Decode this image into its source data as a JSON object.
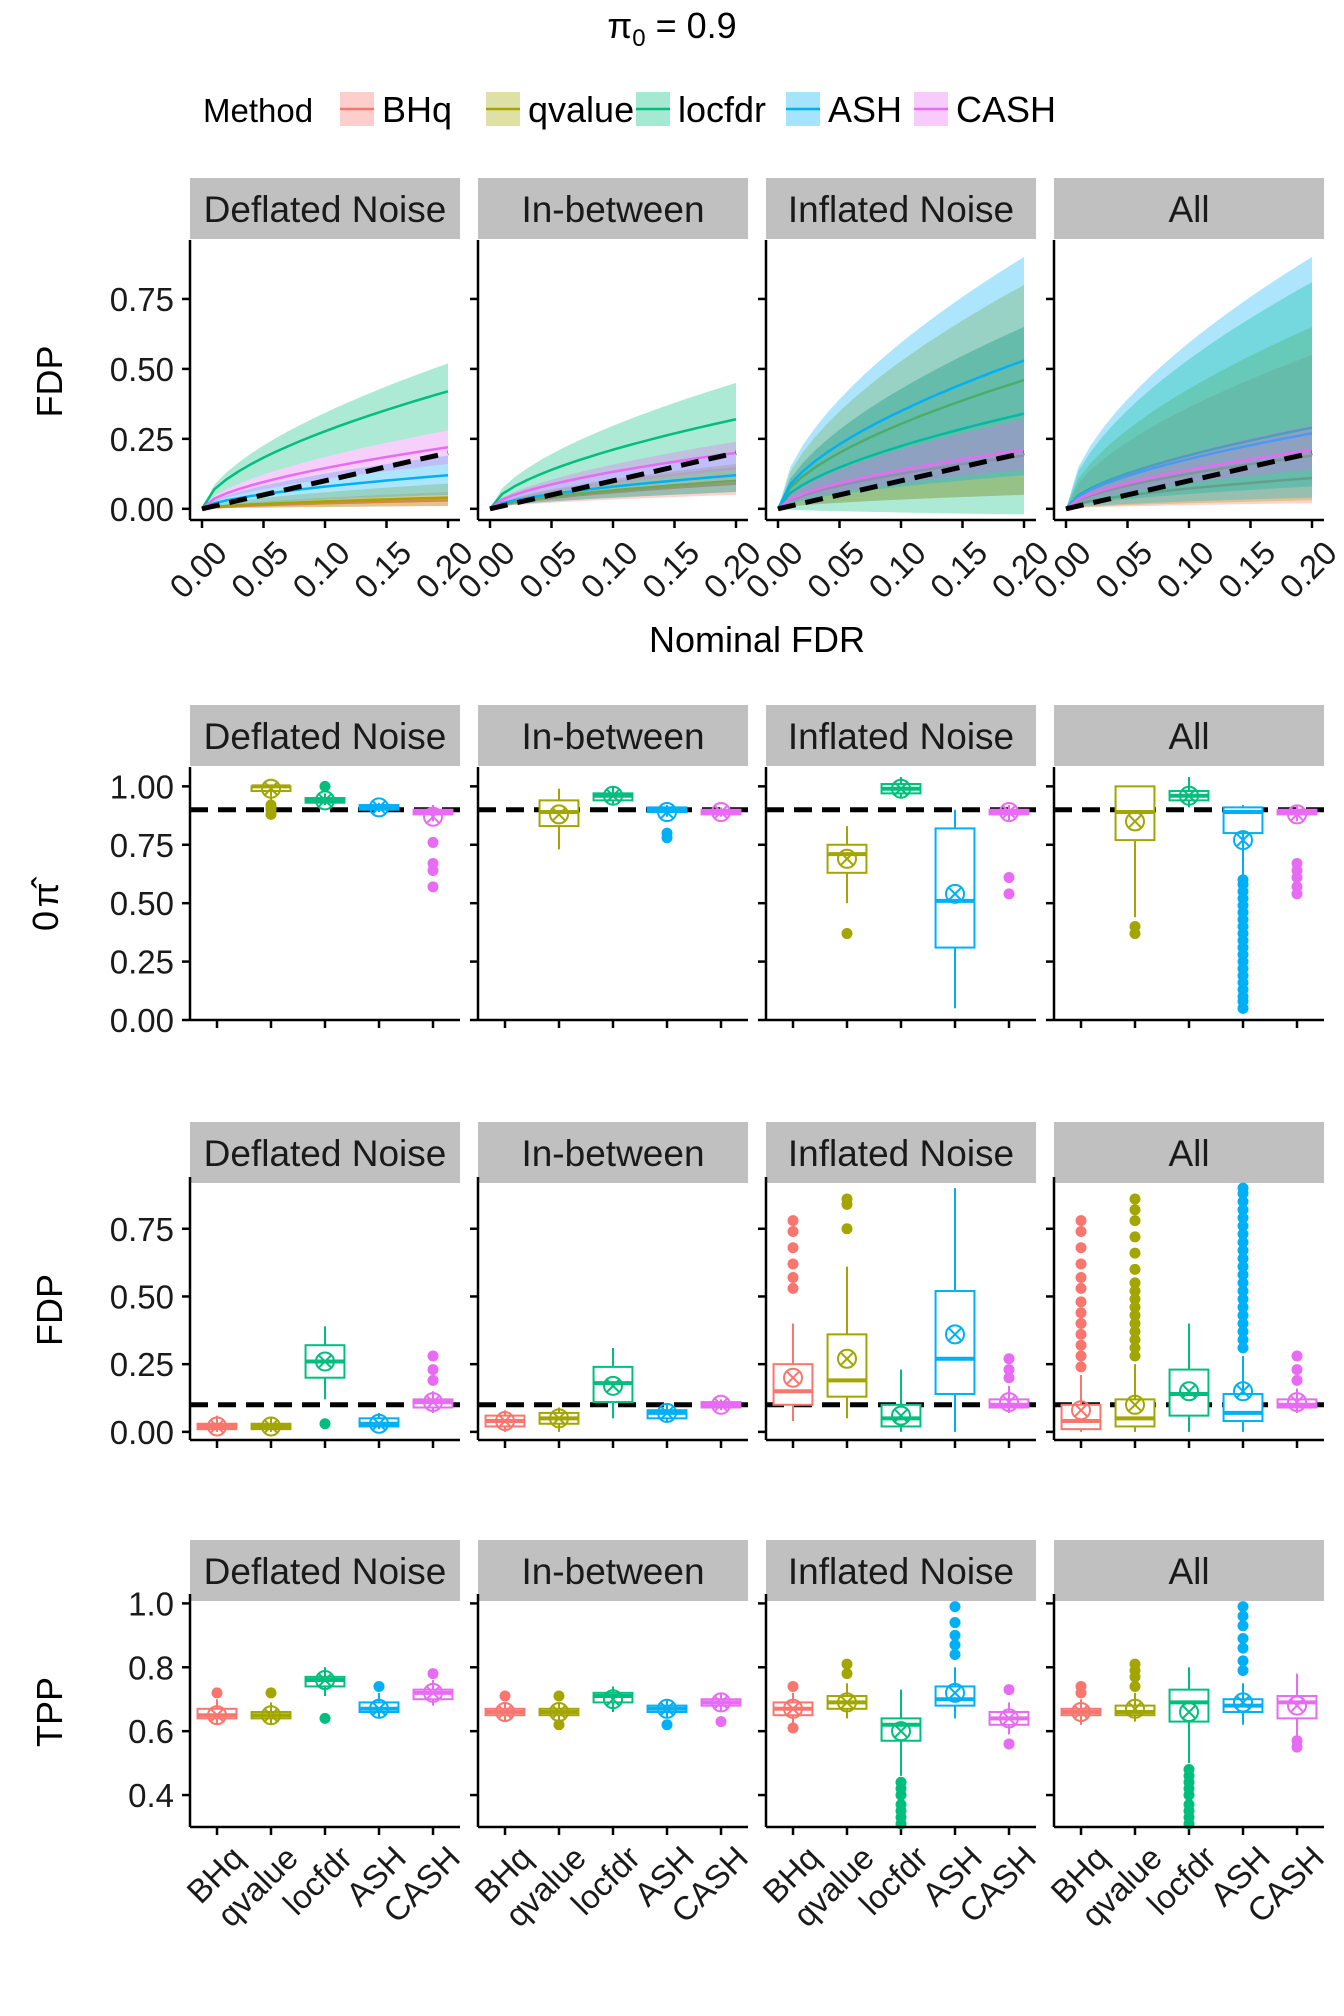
{
  "title": "π0 = 0.9",
  "title_main": "π",
  "title_sub": "0",
  "title_rest": " = 0.9",
  "legend": {
    "title": "Method",
    "items": [
      {
        "label": "BHq",
        "color": "#f8766d"
      },
      {
        "label": "qvalue",
        "color": "#a3a500"
      },
      {
        "label": "locfdr",
        "color": "#00bf7d"
      },
      {
        "label": "ASH",
        "color": "#00b0f6"
      },
      {
        "label": "CASH",
        "color": "#e76bf3"
      }
    ]
  },
  "chart_data": [
    {
      "type": "line",
      "facets": [
        "Deflated Noise",
        "In-between",
        "Inflated Noise",
        "All"
      ],
      "ylabel": "FDP",
      "xlabel": "Nominal FDR",
      "xlim": [
        0,
        0.2
      ],
      "ylim": [
        -0.04,
        0.95
      ],
      "x_ticks": [
        "0.00",
        "0.05",
        "0.10",
        "0.15",
        "0.20"
      ],
      "y_ticks": [
        "0.00",
        "0.25",
        "0.50",
        "0.75"
      ],
      "reference_line": "y = x (dashed)",
      "series": [
        {
          "name": "BHq",
          "end_mean": [
            0.03,
            0.09,
            0.19,
            0.11
          ],
          "end_band": [
            [
              0.01,
              0.06
            ],
            [
              0.05,
              0.15
            ],
            [
              0.05,
              0.65
            ],
            [
              0.02,
              0.55
            ]
          ]
        },
        {
          "name": "qvalue",
          "end_mean": [
            0.04,
            0.1,
            0.46,
            0.19
          ],
          "end_band": [
            [
              0.01,
              0.09
            ],
            [
              0.06,
              0.16
            ],
            [
              0.05,
              0.8
            ],
            [
              0.03,
              0.65
            ]
          ]
        },
        {
          "name": "locfdr",
          "end_mean": [
            0.42,
            0.32,
            0.34,
            0.29
          ],
          "end_band": [
            [
              0.28,
              0.52
            ],
            [
              0.2,
              0.45
            ],
            [
              -0.02,
              0.65
            ],
            [
              0.08,
              0.81
            ]
          ]
        },
        {
          "name": "ASH",
          "end_mean": [
            0.12,
            0.12,
            0.53,
            0.27
          ],
          "end_band": [
            [
              0.05,
              0.19
            ],
            [
              0.06,
              0.2
            ],
            [
              0.12,
              0.9
            ],
            [
              0.04,
              0.9
            ]
          ]
        },
        {
          "name": "CASH",
          "end_mean": [
            0.22,
            0.2,
            0.21,
            0.21
          ],
          "end_band": [
            [
              0.16,
              0.28
            ],
            [
              0.14,
              0.24
            ],
            [
              0.14,
              0.32
            ],
            [
              0.14,
              0.3
            ]
          ]
        }
      ]
    },
    {
      "type": "box",
      "facets": [
        "Deflated Noise",
        "In-between",
        "Inflated Noise",
        "All"
      ],
      "ylabel": "π0 hat",
      "ylim": [
        0,
        1.07
      ],
      "y_ticks": [
        "0.00",
        "0.25",
        "0.50",
        "0.75",
        "1.00"
      ],
      "reference_line": 0.9,
      "methods": [
        "qvalue",
        "locfdr",
        "ASH",
        "CASH"
      ],
      "boxes": {
        "Deflated Noise": [
          {
            "q1": 0.98,
            "med": 1.0,
            "q3": 1.0,
            "lo": 0.93,
            "hi": 1.0,
            "mean": 0.99,
            "out": [
              0.88,
              0.9,
              0.91,
              0.92
            ]
          },
          {
            "q1": 0.93,
            "med": 0.94,
            "q3": 0.95,
            "lo": 0.92,
            "hi": 0.97,
            "mean": 0.94,
            "out": [
              1.0
            ]
          },
          {
            "q1": 0.9,
            "med": 0.91,
            "q3": 0.92,
            "lo": 0.89,
            "hi": 0.93,
            "mean": 0.91,
            "out": []
          },
          {
            "q1": 0.88,
            "med": 0.89,
            "q3": 0.9,
            "lo": 0.85,
            "hi": 0.92,
            "mean": 0.87,
            "out": [
              0.57,
              0.64,
              0.67,
              0.76
            ]
          }
        ],
        "In-between": [
          {
            "q1": 0.83,
            "med": 0.89,
            "q3": 0.94,
            "lo": 0.73,
            "hi": 0.99,
            "mean": 0.88,
            "out": []
          },
          {
            "q1": 0.94,
            "med": 0.96,
            "q3": 0.97,
            "lo": 0.92,
            "hi": 1.0,
            "mean": 0.96,
            "out": []
          },
          {
            "q1": 0.89,
            "med": 0.9,
            "q3": 0.91,
            "lo": 0.87,
            "hi": 0.92,
            "mean": 0.89,
            "out": [
              0.78,
              0.8
            ]
          },
          {
            "q1": 0.88,
            "med": 0.89,
            "q3": 0.9,
            "lo": 0.87,
            "hi": 0.91,
            "mean": 0.89,
            "out": []
          }
        ],
        "Inflated Noise": [
          {
            "q1": 0.63,
            "med": 0.71,
            "q3": 0.75,
            "lo": 0.5,
            "hi": 0.83,
            "mean": 0.69,
            "out": [
              0.37
            ]
          },
          {
            "q1": 0.97,
            "med": 0.99,
            "q3": 1.01,
            "lo": 0.95,
            "hi": 1.04,
            "mean": 0.99,
            "out": []
          },
          {
            "q1": 0.31,
            "med": 0.51,
            "q3": 0.82,
            "lo": 0.05,
            "hi": 0.9,
            "mean": 0.54,
            "out": []
          },
          {
            "q1": 0.88,
            "med": 0.89,
            "q3": 0.9,
            "lo": 0.85,
            "hi": 0.92,
            "mean": 0.89,
            "out": [
              0.54,
              0.61
            ]
          }
        ],
        "All": [
          {
            "q1": 0.77,
            "med": 0.89,
            "q3": 1.0,
            "lo": 0.44,
            "hi": 1.0,
            "mean": 0.85,
            "out": [
              0.37,
              0.4
            ]
          },
          {
            "q1": 0.94,
            "med": 0.96,
            "q3": 0.98,
            "lo": 0.91,
            "hi": 1.04,
            "mean": 0.96,
            "out": []
          },
          {
            "q1": 0.8,
            "med": 0.89,
            "q3": 0.91,
            "lo": 0.62,
            "hi": 0.92,
            "mean": 0.77,
            "out": [
              0.05,
              0.08,
              0.1,
              0.13,
              0.16,
              0.19,
              0.22,
              0.25,
              0.28,
              0.31,
              0.34,
              0.37,
              0.4,
              0.43,
              0.46,
              0.49,
              0.52,
              0.55,
              0.58,
              0.6
            ]
          },
          {
            "q1": 0.88,
            "med": 0.89,
            "q3": 0.9,
            "lo": 0.85,
            "hi": 0.92,
            "mean": 0.88,
            "out": [
              0.54,
              0.57,
              0.61,
              0.64,
              0.67
            ]
          }
        ]
      }
    },
    {
      "type": "box",
      "facets": [
        "Deflated Noise",
        "In-between",
        "Inflated Noise",
        "All"
      ],
      "ylabel": "FDP",
      "ylim": [
        -0.03,
        0.93
      ],
      "y_ticks": [
        "0.00",
        "0.25",
        "0.50",
        "0.75"
      ],
      "reference_line": 0.1,
      "methods": [
        "BHq",
        "qvalue",
        "locfdr",
        "ASH",
        "CASH"
      ],
      "boxes": {
        "Deflated Noise": [
          {
            "q1": 0.01,
            "med": 0.02,
            "q3": 0.03,
            "lo": 0.0,
            "hi": 0.06,
            "mean": 0.02,
            "out": []
          },
          {
            "q1": 0.01,
            "med": 0.02,
            "q3": 0.03,
            "lo": 0.0,
            "hi": 0.05,
            "mean": 0.02,
            "out": []
          },
          {
            "q1": 0.2,
            "med": 0.26,
            "q3": 0.32,
            "lo": 0.12,
            "hi": 0.39,
            "mean": 0.26,
            "out": [
              0.03
            ]
          },
          {
            "q1": 0.02,
            "med": 0.03,
            "q3": 0.05,
            "lo": 0.01,
            "hi": 0.07,
            "mean": 0.03,
            "out": []
          },
          {
            "q1": 0.09,
            "med": 0.11,
            "q3": 0.12,
            "lo": 0.07,
            "hi": 0.15,
            "mean": 0.11,
            "out": [
              0.19,
              0.23,
              0.28
            ]
          }
        ],
        "In-between": [
          {
            "q1": 0.02,
            "med": 0.04,
            "q3": 0.06,
            "lo": 0.0,
            "hi": 0.08,
            "mean": 0.04,
            "out": []
          },
          {
            "q1": 0.03,
            "med": 0.05,
            "q3": 0.07,
            "lo": 0.0,
            "hi": 0.09,
            "mean": 0.05,
            "out": []
          },
          {
            "q1": 0.11,
            "med": 0.18,
            "q3": 0.24,
            "lo": 0.05,
            "hi": 0.31,
            "mean": 0.17,
            "out": []
          },
          {
            "q1": 0.05,
            "med": 0.07,
            "q3": 0.08,
            "lo": 0.04,
            "hi": 0.1,
            "mean": 0.07,
            "out": []
          },
          {
            "q1": 0.09,
            "med": 0.1,
            "q3": 0.11,
            "lo": 0.08,
            "hi": 0.12,
            "mean": 0.1,
            "out": []
          }
        ],
        "Inflated Noise": [
          {
            "q1": 0.1,
            "med": 0.15,
            "q3": 0.25,
            "lo": 0.04,
            "hi": 0.4,
            "mean": 0.2,
            "out": [
              0.53,
              0.57,
              0.62,
              0.68,
              0.74,
              0.78
            ]
          },
          {
            "q1": 0.13,
            "med": 0.19,
            "q3": 0.36,
            "lo": 0.05,
            "hi": 0.61,
            "mean": 0.27,
            "out": [
              0.75,
              0.84,
              0.86
            ]
          },
          {
            "q1": 0.02,
            "med": 0.05,
            "q3": 0.1,
            "lo": 0.0,
            "hi": 0.23,
            "mean": 0.06,
            "out": []
          },
          {
            "q1": 0.14,
            "med": 0.27,
            "q3": 0.52,
            "lo": 0.0,
            "hi": 0.9,
            "mean": 0.36,
            "out": []
          },
          {
            "q1": 0.09,
            "med": 0.1,
            "q3": 0.12,
            "lo": 0.07,
            "hi": 0.17,
            "mean": 0.11,
            "out": [
              0.2,
              0.23,
              0.27
            ]
          }
        ],
        "All": [
          {
            "q1": 0.01,
            "med": 0.04,
            "q3": 0.1,
            "lo": 0.0,
            "hi": 0.21,
            "mean": 0.08,
            "out": [
              0.24,
              0.28,
              0.32,
              0.36,
              0.4,
              0.44,
              0.48,
              0.53,
              0.57,
              0.62,
              0.68,
              0.74,
              0.78
            ]
          },
          {
            "q1": 0.02,
            "med": 0.05,
            "q3": 0.12,
            "lo": 0.0,
            "hi": 0.25,
            "mean": 0.1,
            "out": [
              0.28,
              0.31,
              0.34,
              0.37,
              0.4,
              0.43,
              0.46,
              0.49,
              0.52,
              0.55,
              0.6,
              0.66,
              0.72,
              0.78,
              0.82,
              0.86
            ]
          },
          {
            "q1": 0.06,
            "med": 0.14,
            "q3": 0.23,
            "lo": 0.0,
            "hi": 0.4,
            "mean": 0.15,
            "out": []
          },
          {
            "q1": 0.04,
            "med": 0.07,
            "q3": 0.14,
            "lo": 0.0,
            "hi": 0.28,
            "mean": 0.15,
            "out": [
              0.31,
              0.34,
              0.37,
              0.4,
              0.43,
              0.46,
              0.49,
              0.52,
              0.55,
              0.58,
              0.61,
              0.64,
              0.67,
              0.7,
              0.73,
              0.76,
              0.79,
              0.82,
              0.85,
              0.88,
              0.9
            ]
          },
          {
            "q1": 0.09,
            "med": 0.1,
            "q3": 0.12,
            "lo": 0.07,
            "hi": 0.16,
            "mean": 0.11,
            "out": [
              0.19,
              0.23,
              0.28
            ]
          }
        ]
      }
    },
    {
      "type": "box",
      "facets": [
        "Deflated Noise",
        "In-between",
        "Inflated Noise",
        "All"
      ],
      "ylabel": "TPP",
      "ylim": [
        0.3,
        1.02
      ],
      "y_ticks": [
        "0.4",
        "0.6",
        "0.8",
        "1.0"
      ],
      "methods": [
        "BHq",
        "qvalue",
        "locfdr",
        "ASH",
        "CASH"
      ],
      "x_tick_labels": [
        "BHq",
        "qvalue",
        "locfdr",
        "ASH",
        "CASH"
      ],
      "boxes": {
        "Deflated Noise": [
          {
            "q1": 0.64,
            "med": 0.65,
            "q3": 0.67,
            "lo": 0.62,
            "hi": 0.7,
            "mean": 0.65,
            "out": [
              0.72
            ]
          },
          {
            "q1": 0.64,
            "med": 0.65,
            "q3": 0.66,
            "lo": 0.62,
            "hi": 0.69,
            "mean": 0.65,
            "out": [
              0.72
            ]
          },
          {
            "q1": 0.74,
            "med": 0.76,
            "q3": 0.77,
            "lo": 0.71,
            "hi": 0.8,
            "mean": 0.76,
            "out": [
              0.64
            ]
          },
          {
            "q1": 0.66,
            "med": 0.67,
            "q3": 0.69,
            "lo": 0.64,
            "hi": 0.72,
            "mean": 0.67,
            "out": [
              0.74
            ]
          },
          {
            "q1": 0.7,
            "med": 0.72,
            "q3": 0.73,
            "lo": 0.68,
            "hi": 0.76,
            "mean": 0.72,
            "out": [
              0.78
            ]
          }
        ],
        "In-between": [
          {
            "q1": 0.65,
            "med": 0.66,
            "q3": 0.67,
            "lo": 0.63,
            "hi": 0.69,
            "mean": 0.66,
            "out": [
              0.71
            ]
          },
          {
            "q1": 0.65,
            "med": 0.66,
            "q3": 0.67,
            "lo": 0.63,
            "hi": 0.69,
            "mean": 0.66,
            "out": [
              0.62,
              0.71
            ]
          },
          {
            "q1": 0.69,
            "med": 0.71,
            "q3": 0.72,
            "lo": 0.66,
            "hi": 0.74,
            "mean": 0.7,
            "out": []
          },
          {
            "q1": 0.66,
            "med": 0.67,
            "q3": 0.68,
            "lo": 0.64,
            "hi": 0.7,
            "mean": 0.67,
            "out": [
              0.62
            ]
          },
          {
            "q1": 0.68,
            "med": 0.69,
            "q3": 0.7,
            "lo": 0.66,
            "hi": 0.72,
            "mean": 0.69,
            "out": [
              0.63
            ]
          }
        ],
        "Inflated Noise": [
          {
            "q1": 0.65,
            "med": 0.67,
            "q3": 0.69,
            "lo": 0.62,
            "hi": 0.72,
            "mean": 0.67,
            "out": [
              0.61,
              0.74
            ]
          },
          {
            "q1": 0.67,
            "med": 0.69,
            "q3": 0.71,
            "lo": 0.64,
            "hi": 0.75,
            "mean": 0.69,
            "out": [
              0.78,
              0.81
            ]
          },
          {
            "q1": 0.57,
            "med": 0.62,
            "q3": 0.64,
            "lo": 0.46,
            "hi": 0.73,
            "mean": 0.6,
            "out": [
              0.31,
              0.33,
              0.35,
              0.37,
              0.4,
              0.42,
              0.44
            ]
          },
          {
            "q1": 0.68,
            "med": 0.7,
            "q3": 0.74,
            "lo": 0.64,
            "hi": 0.8,
            "mean": 0.72,
            "out": [
              0.84,
              0.87,
              0.9,
              0.94,
              0.99
            ]
          },
          {
            "q1": 0.62,
            "med": 0.64,
            "q3": 0.66,
            "lo": 0.59,
            "hi": 0.69,
            "mean": 0.64,
            "out": [
              0.56,
              0.73
            ]
          }
        ],
        "All": [
          {
            "q1": 0.65,
            "med": 0.66,
            "q3": 0.67,
            "lo": 0.62,
            "hi": 0.7,
            "mean": 0.66,
            "out": [
              0.72,
              0.74
            ]
          },
          {
            "q1": 0.65,
            "med": 0.66,
            "q3": 0.68,
            "lo": 0.63,
            "hi": 0.72,
            "mean": 0.67,
            "out": [
              0.74,
              0.77,
              0.79,
              0.81
            ]
          },
          {
            "q1": 0.63,
            "med": 0.69,
            "q3": 0.73,
            "lo": 0.5,
            "hi": 0.8,
            "mean": 0.66,
            "out": [
              0.31,
              0.33,
              0.35,
              0.37,
              0.4,
              0.42,
              0.44,
              0.46,
              0.48
            ]
          },
          {
            "q1": 0.66,
            "med": 0.68,
            "q3": 0.7,
            "lo": 0.62,
            "hi": 0.75,
            "mean": 0.69,
            "out": [
              0.79,
              0.82,
              0.86,
              0.89,
              0.93,
              0.96,
              0.99
            ]
          },
          {
            "q1": 0.64,
            "med": 0.69,
            "q3": 0.71,
            "lo": 0.58,
            "hi": 0.78,
            "mean": 0.68,
            "out": [
              0.55,
              0.57
            ]
          }
        ]
      }
    }
  ]
}
